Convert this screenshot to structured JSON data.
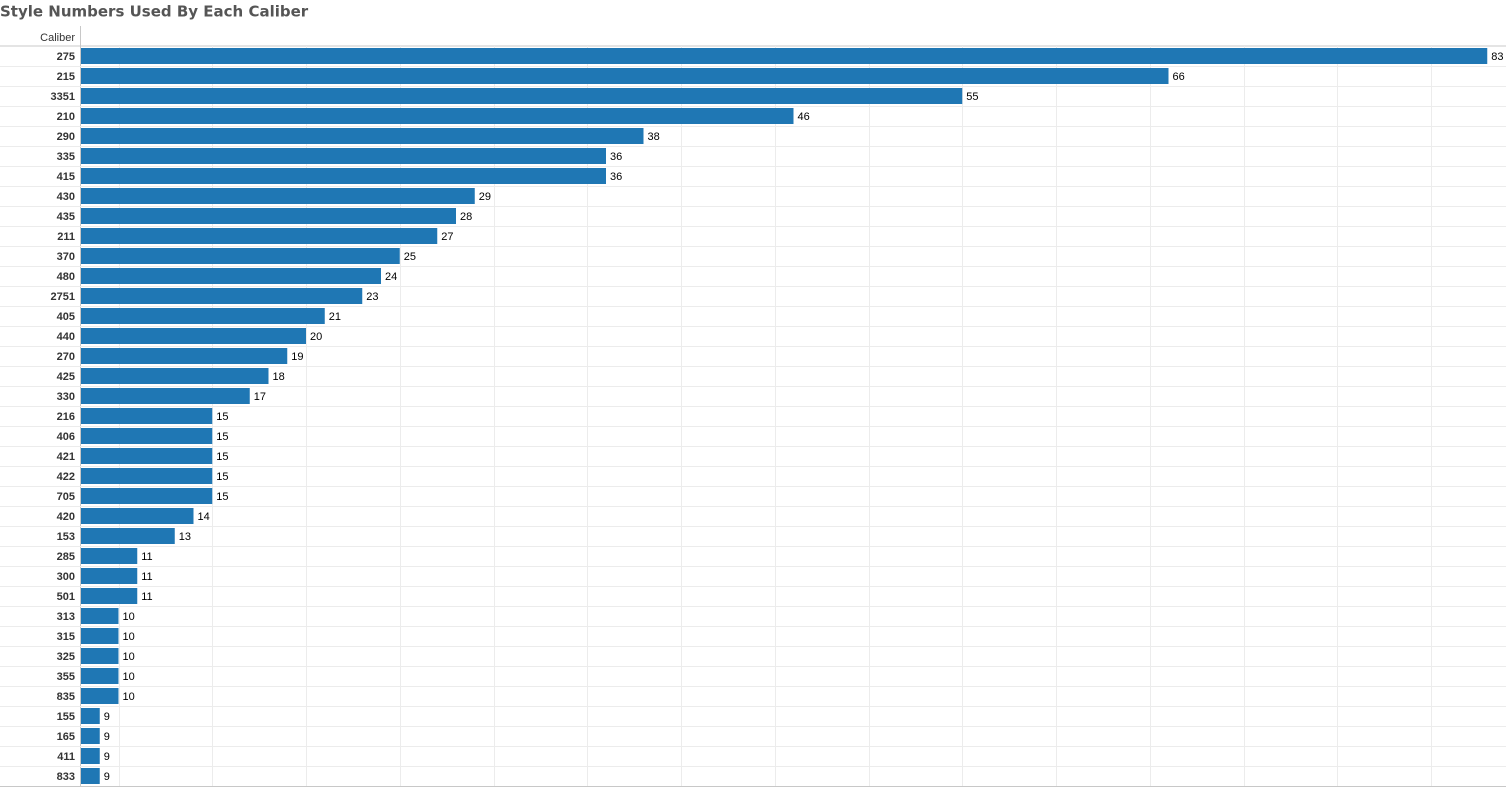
{
  "chart_data": {
    "type": "hbar",
    "title": "Style Numbers Used By Each Caliber",
    "row_header": "Caliber",
    "categories": [
      "275",
      "215",
      "3351",
      "210",
      "290",
      "335",
      "415",
      "430",
      "435",
      "211",
      "370",
      "480",
      "2751",
      "405",
      "440",
      "270",
      "425",
      "330",
      "216",
      "406",
      "421",
      "422",
      "705",
      "420",
      "153",
      "285",
      "300",
      "501",
      "313",
      "315",
      "325",
      "355",
      "835",
      "155",
      "165",
      "411",
      "833"
    ],
    "values": [
      83,
      66,
      55,
      46,
      38,
      36,
      36,
      29,
      28,
      27,
      25,
      24,
      23,
      21,
      20,
      19,
      18,
      17,
      15,
      15,
      15,
      15,
      15,
      14,
      13,
      11,
      11,
      11,
      10,
      10,
      10,
      10,
      10,
      9,
      9,
      9,
      9
    ],
    "color": "#1f77b4",
    "xlim": [
      8,
      84
    ],
    "xticks": [
      10,
      15,
      20,
      25,
      30,
      35,
      40,
      45,
      50,
      55,
      60,
      65,
      70,
      75,
      80
    ],
    "grid": true
  }
}
